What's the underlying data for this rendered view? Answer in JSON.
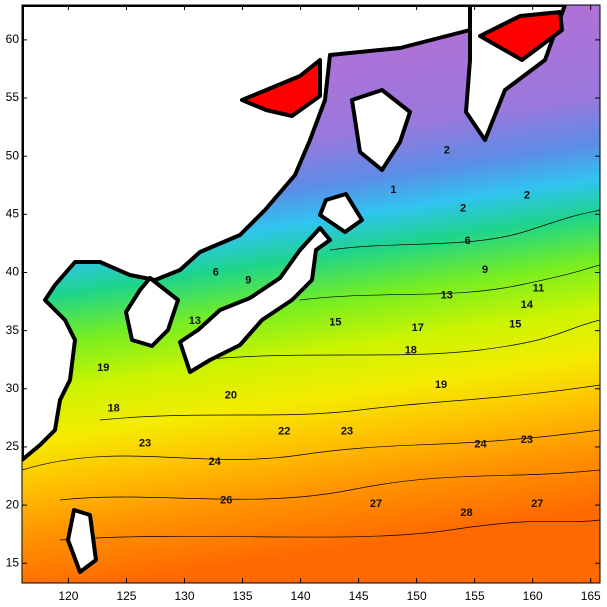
{
  "map": {
    "xlim": [
      116,
      165.8
    ],
    "ylim": [
      13.3,
      63
    ],
    "xticks": [
      120,
      125,
      130,
      135,
      140,
      145,
      150,
      155,
      160,
      165
    ],
    "yticks": [
      15,
      20,
      25,
      30,
      35,
      40,
      45,
      50,
      55,
      60
    ],
    "contour_labels": [
      {
        "value": 2,
        "lon": 152.6,
        "lat": 50.5
      },
      {
        "value": 1,
        "lon": 148,
        "lat": 47.1
      },
      {
        "value": 2,
        "lon": 154,
        "lat": 45.5
      },
      {
        "value": 2,
        "lon": 159.5,
        "lat": 46.6
      },
      {
        "value": 6,
        "lon": 154.4,
        "lat": 42.7
      },
      {
        "value": 9,
        "lon": 155.9,
        "lat": 40.2
      },
      {
        "value": 11,
        "lon": 160.5,
        "lat": 38.6
      },
      {
        "value": 13,
        "lon": 152.6,
        "lat": 38.0
      },
      {
        "value": 14,
        "lon": 159.5,
        "lat": 37.2
      },
      {
        "value": 15,
        "lon": 158.5,
        "lat": 35.5
      },
      {
        "value": 17,
        "lon": 150.1,
        "lat": 35.2
      },
      {
        "value": 18,
        "lon": 149.5,
        "lat": 33.3
      },
      {
        "value": 19,
        "lon": 152.1,
        "lat": 30.3
      },
      {
        "value": 23,
        "lon": 144,
        "lat": 26.3
      },
      {
        "value": 24,
        "lon": 155.5,
        "lat": 25.2
      },
      {
        "value": 23,
        "lon": 159.5,
        "lat": 25.6
      },
      {
        "value": 27,
        "lon": 146.5,
        "lat": 20.1
      },
      {
        "value": 27,
        "lon": 160.4,
        "lat": 20.1
      },
      {
        "value": 28,
        "lon": 154.3,
        "lat": 19.3
      },
      {
        "value": 26,
        "lon": 133.6,
        "lat": 20.4
      },
      {
        "value": 24,
        "lon": 132.6,
        "lat": 23.7
      },
      {
        "value": 23,
        "lon": 126.6,
        "lat": 25.3
      },
      {
        "value": 22,
        "lon": 138.6,
        "lat": 26.3
      },
      {
        "value": 20,
        "lon": 134,
        "lat": 29.4
      },
      {
        "value": 18,
        "lon": 123.9,
        "lat": 28.3
      },
      {
        "value": 19,
        "lon": 123,
        "lat": 31.8
      },
      {
        "value": 13,
        "lon": 130.9,
        "lat": 35.8
      },
      {
        "value": 15,
        "lon": 143,
        "lat": 35.7
      },
      {
        "value": 6,
        "lon": 132.7,
        "lat": 40.0
      },
      {
        "value": 9,
        "lon": 135.5,
        "lat": 39.3
      }
    ]
  }
}
